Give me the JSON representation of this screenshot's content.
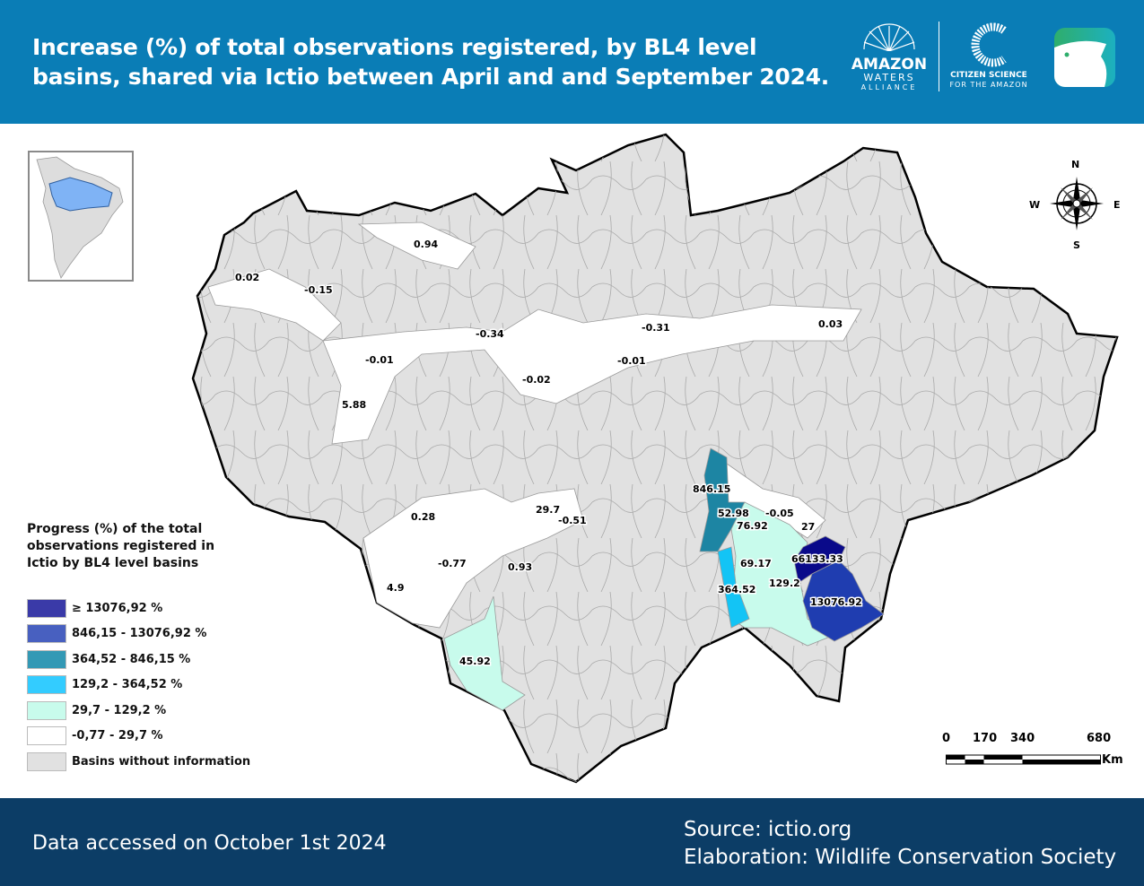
{
  "header": {
    "title": "Increase (%) of total observations registered, by BL4 level basins, shared via Ictio between April and and September 2024.",
    "logos": {
      "amazon_waters": [
        "AMAZON",
        "WATERS",
        "ALLIANCE"
      ],
      "citizen_science": [
        "CITIZEN SCIENCE",
        "FOR THE AMAZON"
      ],
      "app_icon": "ictio-fish-icon"
    }
  },
  "map": {
    "compass": {
      "n": "N",
      "s": "S",
      "e": "E",
      "w": "W"
    },
    "labels": [
      {
        "text": "0.94",
        "cls": "white"
      },
      {
        "text": "0.02",
        "cls": "white"
      },
      {
        "text": "-0.15",
        "cls": "white"
      },
      {
        "text": "-0.34",
        "cls": "white"
      },
      {
        "text": "-0.31",
        "cls": "white"
      },
      {
        "text": "0.03",
        "cls": "white"
      },
      {
        "text": "-0.01",
        "cls": "white"
      },
      {
        "text": "-0.02",
        "cls": "white"
      },
      {
        "text": "-0.01",
        "cls": "white"
      },
      {
        "text": "5.88",
        "cls": "white"
      },
      {
        "text": "0.28",
        "cls": "white"
      },
      {
        "text": "29.7",
        "cls": "white"
      },
      {
        "text": "-0.51",
        "cls": "white"
      },
      {
        "text": "-0.77",
        "cls": "white"
      },
      {
        "text": "0.93",
        "cls": "white"
      },
      {
        "text": "4.9",
        "cls": "white"
      },
      {
        "text": "45.92",
        "cls": "mint"
      },
      {
        "text": "846.15",
        "cls": "teal"
      },
      {
        "text": "52.98",
        "cls": "mint"
      },
      {
        "text": "76.92",
        "cls": "mint"
      },
      {
        "text": "-0.05",
        "cls": "white"
      },
      {
        "text": "27",
        "cls": "white"
      },
      {
        "text": "69.17",
        "cls": "mint"
      },
      {
        "text": "364.52",
        "cls": "cyan"
      },
      {
        "text": "129.2",
        "cls": "mint"
      },
      {
        "text": "66133.33",
        "cls": "navy"
      },
      {
        "text": "13076.92",
        "cls": "blue"
      }
    ],
    "scale": {
      "ticks": [
        "0",
        "170",
        "340",
        "680"
      ],
      "unit": "Km"
    }
  },
  "legend": {
    "title": "Progress (%) of the total observations registered in Ictio by BL4 level basins",
    "items": [
      {
        "label": "≥ 13076,92 %",
        "color": "#3a3aa8"
      },
      {
        "label": "846,15 - 13076,92 %",
        "color": "#4860c0"
      },
      {
        "label": "364,52 - 846,15 %",
        "color": "#3399b5"
      },
      {
        "label": "129,2 - 364,52 %",
        "color": "#33ccff"
      },
      {
        "label": "29,7 - 129,2 %",
        "color": "#c8fbec"
      },
      {
        "label": "-0,77 - 29,7 %",
        "color": "#ffffff"
      },
      {
        "label": "Basins without information",
        "color": "#e1e1e1"
      }
    ]
  },
  "footer": {
    "accessed": "Data accessed on October 1st 2024",
    "source": "Source: ictio.org",
    "elaboration": "Elaboration: Wildlife Conservation Society"
  },
  "colors": {
    "header": "#0a7db6",
    "footer": "#0c3d66",
    "no_info": "#e1e1e1",
    "navy": "#0a0a8a",
    "blue": "#1f3db0",
    "teal": "#1d85a3",
    "cyan": "#13c4f5",
    "mint": "#c8fbec"
  }
}
